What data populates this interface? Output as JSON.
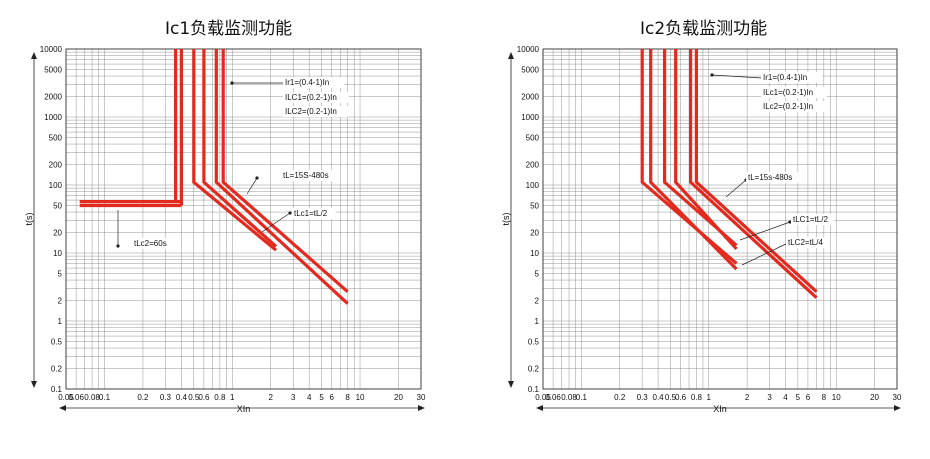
{
  "chart_data": [
    {
      "type": "line",
      "title": "Ic1负载监测功能",
      "xlabel": "XIn",
      "ylabel": "t(s)",
      "x_scale": "log",
      "y_scale": "log",
      "xlim": [
        0.05,
        30
      ],
      "ylim": [
        0.1,
        10000
      ],
      "grid": true,
      "x_ticks": [
        "0.05",
        "0.06",
        "0.08",
        "0.1",
        "0.2",
        "0.3",
        "0.4",
        "0.5",
        "0.6",
        "0.8",
        "1",
        "2",
        "3",
        "4",
        "5",
        "6",
        "8",
        "10",
        "20",
        "30"
      ],
      "y_ticks": [
        "10000",
        "5000",
        "2000",
        "1000",
        "500",
        "200",
        "100",
        "50",
        "20",
        "10",
        "5",
        "2",
        "1",
        "0.5",
        "0.2",
        "0.1"
      ],
      "series": [
        {
          "x": [
            0.064,
            0.4
          ],
          "y": [
            50,
            50
          ]
        },
        {
          "x": [
            0.064,
            0.4
          ],
          "y": [
            57,
            57
          ]
        },
        {
          "x": [
            0.4,
            0.4
          ],
          "y": [
            50,
            10000
          ]
        },
        {
          "x": [
            0.36,
            0.36
          ],
          "y": [
            57,
            10000
          ]
        },
        {
          "x": [
            0.5,
            0.5,
            2.2
          ],
          "y": [
            10000,
            110,
            11
          ]
        },
        {
          "x": [
            0.6,
            0.6,
            2.2
          ],
          "y": [
            10000,
            110,
            12.5
          ]
        },
        {
          "x": [
            0.75,
            0.75,
            8
          ],
          "y": [
            10000,
            110,
            1.8
          ]
        },
        {
          "x": [
            0.85,
            0.85,
            8
          ],
          "y": [
            10000,
            110,
            2.7
          ]
        }
      ],
      "annotations": [
        "Ir1=(0.4-1)In",
        "ILC1=(0.2-1)In",
        "ILC2=(0.2-1)In",
        "tL=15S-480s",
        "tLc1=tL/2",
        "tLc2=60s"
      ]
    },
    {
      "type": "line",
      "title": "Ic2负载监测功能",
      "xlabel": "XIn",
      "ylabel": "t(s)",
      "x_scale": "log",
      "y_scale": "log",
      "xlim": [
        0.05,
        30
      ],
      "ylim": [
        0.1,
        10000
      ],
      "grid": true,
      "x_ticks": [
        "0.05",
        "0.06",
        "0.08",
        "0.1",
        "0.2",
        "0.3",
        "0.4",
        "0.5",
        "0.6",
        "0.8",
        "1",
        "2",
        "3",
        "4",
        "5",
        "6",
        "8",
        "10",
        "20",
        "30"
      ],
      "y_ticks": [
        "10000",
        "5000",
        "2000",
        "1000",
        "500",
        "200",
        "100",
        "50",
        "20",
        "10",
        "5",
        "2",
        "1",
        "0.5",
        "0.2",
        "0.1"
      ],
      "series": [
        {
          "x": [
            0.3,
            0.3,
            1.65
          ],
          "y": [
            10000,
            110,
            7
          ]
        },
        {
          "x": [
            0.35,
            0.35,
            1.65
          ],
          "y": [
            10000,
            110,
            5.8
          ]
        },
        {
          "x": [
            0.45,
            0.45,
            1.65
          ],
          "y": [
            10000,
            110,
            13
          ]
        },
        {
          "x": [
            0.55,
            0.55,
            1.65
          ],
          "y": [
            10000,
            110,
            11.5
          ]
        },
        {
          "x": [
            0.72,
            0.72,
            7
          ],
          "y": [
            10000,
            110,
            2.2
          ]
        },
        {
          "x": [
            0.8,
            0.8,
            7
          ],
          "y": [
            10000,
            110,
            2.7
          ]
        }
      ],
      "annotations": [
        "Ir1=(0.4-1)In",
        "ILc1=(0.2-1)In",
        "ILc2=(0.2-1)In",
        "tL=15s-480s",
        "tLC1=tL/2",
        "tLC2=tL/4"
      ]
    }
  ],
  "colors": {
    "curve": "#e22a1f",
    "grid": "#888888",
    "text": "#111111"
  }
}
